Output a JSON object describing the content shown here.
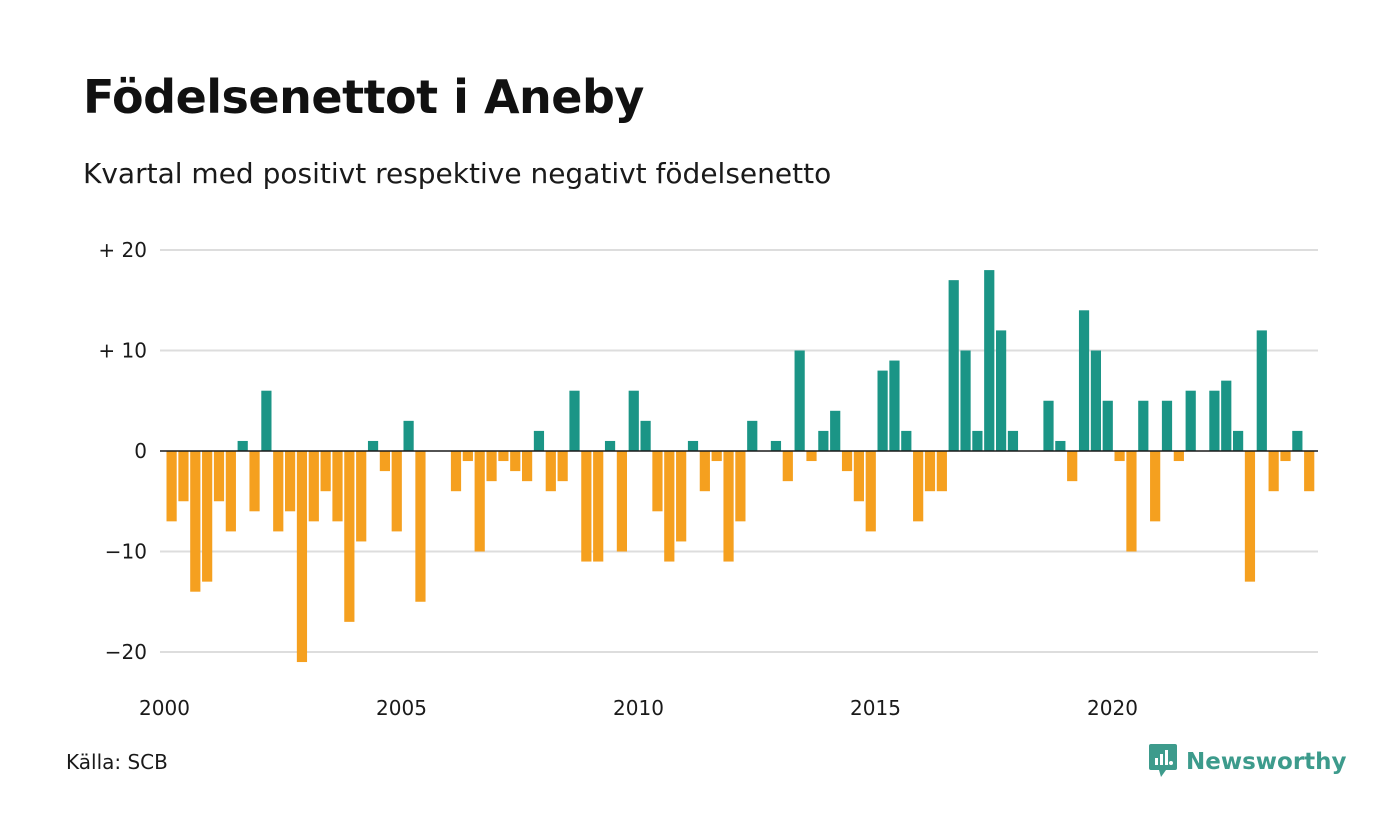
{
  "title": "Födelsenettot i Aneby",
  "subtitle": "Kvartal med positivt respektive negativt födelsenetto",
  "source": "Källa: SCB",
  "brand": {
    "name": "Newsworthy",
    "icon": "newsworthy-logo-icon",
    "color": "#3d9b8c"
  },
  "colors": {
    "positive": "#1b9586",
    "negative": "#f5a01f",
    "grid": "#dddddd",
    "zero_line": "#1a1a1a"
  },
  "chart_data": {
    "type": "bar",
    "x_start": "2000 Q1",
    "x_ticks": [
      {
        "label": "2000",
        "quarter_index": 0
      },
      {
        "label": "2005",
        "quarter_index": 20
      },
      {
        "label": "2010",
        "quarter_index": 40
      },
      {
        "label": "2015",
        "quarter_index": 60
      },
      {
        "label": "2020",
        "quarter_index": 80
      }
    ],
    "y_ticks": [
      {
        "value": 20,
        "label": "+ 20"
      },
      {
        "value": 10,
        "label": "+ 10"
      },
      {
        "value": 0,
        "label": "0"
      },
      {
        "value": -10,
        "label": "−10"
      },
      {
        "value": -20,
        "label": "−20"
      }
    ],
    "ylim": [
      -23,
      20
    ],
    "grid": true,
    "values": [
      -7,
      -5,
      -14,
      -13,
      -5,
      -8,
      1,
      -6,
      6,
      -8,
      -6,
      -21,
      -7,
      -4,
      -7,
      -17,
      -9,
      1,
      -2,
      -8,
      3,
      -15,
      0,
      0,
      -4,
      -1,
      -10,
      -3,
      -1,
      -2,
      -3,
      2,
      -4,
      -3,
      6,
      -11,
      -11,
      1,
      -10,
      6,
      3,
      -6,
      -11,
      -9,
      1,
      -4,
      -1,
      -11,
      -7,
      3,
      0,
      1,
      -3,
      10,
      -1,
      2,
      4,
      -2,
      -5,
      -8,
      8,
      9,
      2,
      -7,
      -4,
      -4,
      17,
      10,
      2,
      18,
      12,
      2,
      0,
      0,
      5,
      1,
      -3,
      14,
      10,
      5,
      -1,
      -10,
      5,
      -7,
      5,
      -1,
      6,
      0,
      6,
      7,
      2,
      -13,
      12,
      -4,
      -1,
      2,
      -4
    ]
  }
}
